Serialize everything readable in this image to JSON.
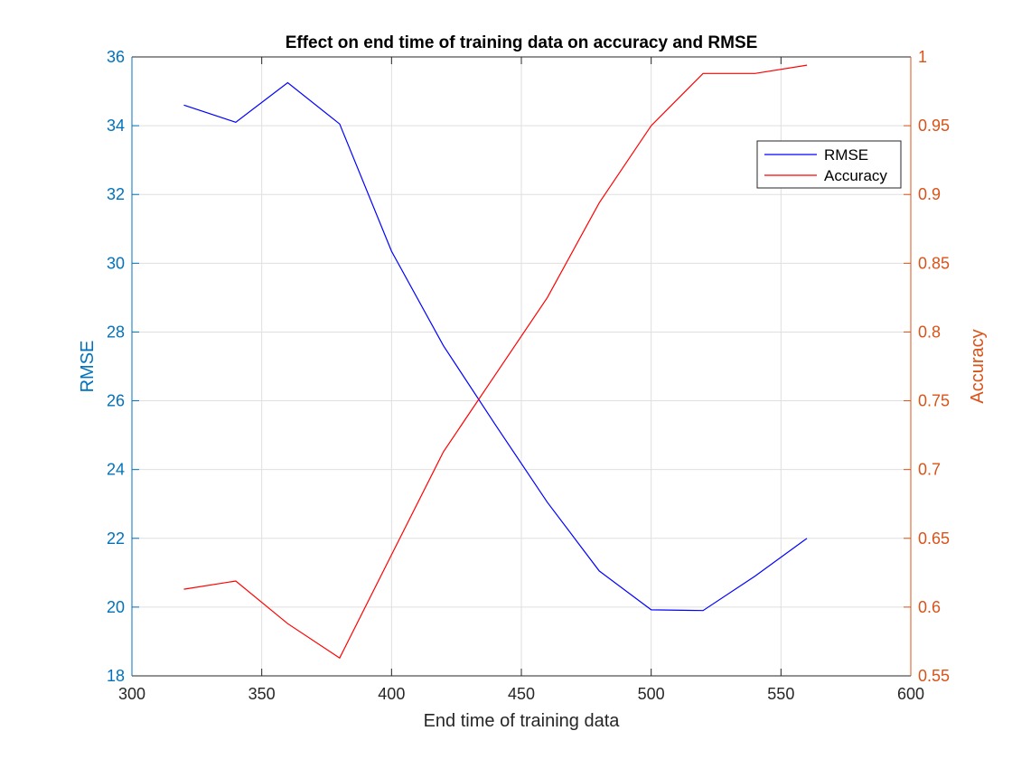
{
  "chart_data": {
    "type": "line",
    "title": "Effect on end time of training data on accuracy and RMSE",
    "xlabel": "End time of training data",
    "ylabel_left": "RMSE",
    "ylabel_right": "Accuracy",
    "xlim": [
      300,
      600
    ],
    "ylim_left": [
      18,
      36
    ],
    "ylim_right": [
      0.55,
      1
    ],
    "x_ticks": [
      "300",
      "350",
      "400",
      "450",
      "500",
      "550",
      "600"
    ],
    "y_left_ticks": [
      "18",
      "20",
      "22",
      "24",
      "26",
      "28",
      "30",
      "32",
      "34",
      "36"
    ],
    "y_right_ticks": [
      "0.55",
      "0.6",
      "0.65",
      "0.7",
      "0.75",
      "0.8",
      "0.85",
      "0.9",
      "0.95",
      "1"
    ],
    "grid": true,
    "legend_position": "top-right",
    "x": [
      320,
      340,
      360,
      380,
      400,
      420,
      440,
      460,
      480,
      500,
      520,
      540,
      560
    ],
    "series": [
      {
        "name": "RMSE",
        "axis": "left",
        "color": "#0000FF",
        "values": [
          34.6,
          34.1,
          35.25,
          34.05,
          30.35,
          27.6,
          25.3,
          23.05,
          21.05,
          19.92,
          19.9,
          20.9,
          22.0
        ]
      },
      {
        "name": "Accuracy",
        "axis": "right",
        "color": "#FF0000",
        "values": [
          0.613,
          0.619,
          0.588,
          0.563,
          0.638,
          0.713,
          0.769,
          0.825,
          0.894,
          0.95,
          0.988,
          0.988,
          0.994
        ]
      }
    ],
    "axis_colors": {
      "left": "#0072BD",
      "right": "#D95319",
      "x": "#262626",
      "grid": "#DFDFDF"
    }
  }
}
